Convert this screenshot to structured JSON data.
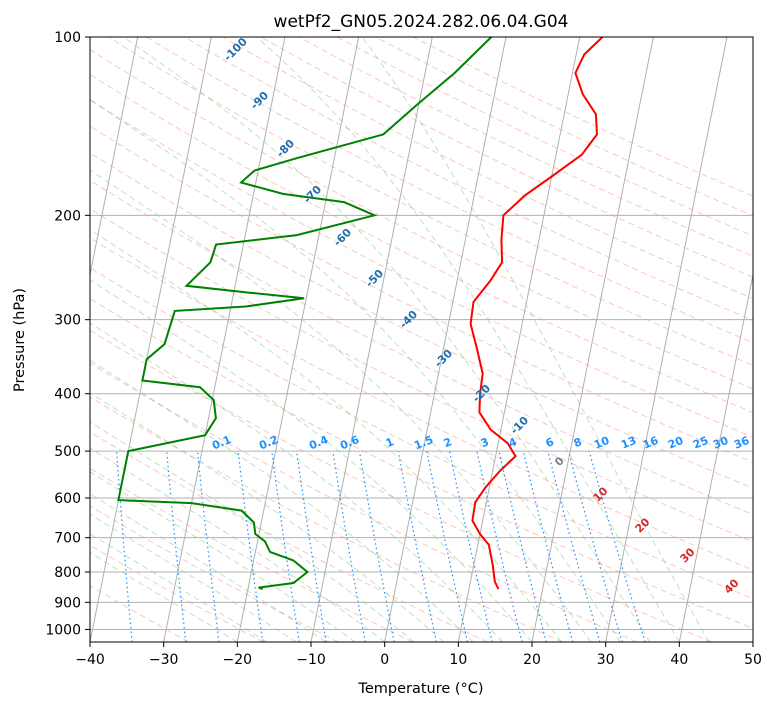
{
  "chart_data": {
    "type": "line",
    "subtype": "skew-t log-p diagram",
    "title": "wetPf2_GN05.2024.282.06.04.G04",
    "xlabel": "Temperature (°C)",
    "ylabel": "Pressure (hPa)",
    "xlim": [
      -40,
      50
    ],
    "ylim": [
      1050,
      100
    ],
    "y_scale": "log",
    "grid": true,
    "x_ticks": [
      "−40",
      "−30",
      "−20",
      "−10",
      "0",
      "10",
      "20",
      "30",
      "40",
      "50"
    ],
    "x_tick_values": [
      -40,
      -30,
      -20,
      -10,
      0,
      10,
      20,
      30,
      40,
      50
    ],
    "y_ticks": [
      "100",
      "200",
      "300",
      "400",
      "500",
      "600",
      "700",
      "800",
      "900",
      "1000"
    ],
    "y_tick_values": [
      100,
      200,
      300,
      400,
      500,
      600,
      700,
      800,
      900,
      1000
    ],
    "isotherm_labels": [
      "-100",
      "-90",
      "-80",
      "-70",
      "-60",
      "-50",
      "-40",
      "-30",
      "-20",
      "-10"
    ],
    "isotherm_label_values": [
      -100,
      -90,
      -80,
      -70,
      -60,
      -50,
      -40,
      -30,
      -20,
      -10
    ],
    "mixing_ratio_labels": [
      "0.1",
      "0.2",
      "0.4",
      "0.6",
      "1",
      "1.5",
      "2",
      "3",
      "4",
      "6",
      "8",
      "10",
      "13",
      "16",
      "20",
      "25",
      "30",
      "36"
    ],
    "mixing_ratio_values": [
      0.1,
      0.2,
      0.4,
      0.6,
      1,
      1.5,
      2,
      3,
      4,
      6,
      8,
      10,
      13,
      16,
      20,
      25,
      30,
      36
    ],
    "moist_adiabat_labels": [
      "0",
      "10",
      "20",
      "30",
      "40"
    ],
    "moist_adiabat_values": [
      0,
      10,
      20,
      30,
      40
    ],
    "colors": {
      "temperature": "#ff0000",
      "dewpoint": "#008000",
      "isotherm_label": "#1f6fb0",
      "mixing_ratio": "#1e90ff",
      "moist_adiabat_label": "#d62728",
      "zero_label": "#808080",
      "dry_adiabat": "#fa8072",
      "moist_adiabat": "#2ca02c",
      "grid": "#b0b0b0"
    },
    "series": [
      {
        "style": "temperature",
        "points": [
          {
            "p": 855,
            "t": 14.0
          },
          {
            "p": 830,
            "t": 13.3
          },
          {
            "p": 780,
            "t": 12.6
          },
          {
            "p": 720,
            "t": 11.5
          },
          {
            "p": 690,
            "t": 10.0
          },
          {
            "p": 655,
            "t": 8.6
          },
          {
            "p": 610,
            "t": 8.5
          },
          {
            "p": 575,
            "t": 9.5
          },
          {
            "p": 540,
            "t": 11.0
          },
          {
            "p": 510,
            "t": 12.7
          },
          {
            "p": 485,
            "t": 11.3
          },
          {
            "p": 460,
            "t": 8.6
          },
          {
            "p": 430,
            "t": 6.6
          },
          {
            "p": 400,
            "t": 6.2
          },
          {
            "p": 370,
            "t": 6.0
          },
          {
            "p": 335,
            "t": 4.5
          },
          {
            "p": 305,
            "t": 3.0
          },
          {
            "p": 280,
            "t": 2.8
          },
          {
            "p": 258,
            "t": 4.5
          },
          {
            "p": 240,
            "t": 5.6
          },
          {
            "p": 220,
            "t": 4.9
          },
          {
            "p": 200,
            "t": 4.5
          },
          {
            "p": 185,
            "t": 6.9
          },
          {
            "p": 172,
            "t": 10.0
          },
          {
            "p": 158,
            "t": 13.5
          },
          {
            "p": 146,
            "t": 15.0
          },
          {
            "p": 135,
            "t": 14.3
          },
          {
            "p": 125,
            "t": 12.0
          },
          {
            "p": 115,
            "t": 10.4
          },
          {
            "p": 107,
            "t": 11.1
          },
          {
            "p": 100,
            "t": 13.1
          }
        ]
      },
      {
        "style": "dewpoint",
        "points": [
          {
            "p": 855,
            "t": -18.0
          },
          {
            "p": 850,
            "t": -18.6
          },
          {
            "p": 835,
            "t": -14.0
          },
          {
            "p": 800,
            "t": -12.4
          },
          {
            "p": 765,
            "t": -14.6
          },
          {
            "p": 740,
            "t": -18.0
          },
          {
            "p": 710,
            "t": -19.0
          },
          {
            "p": 690,
            "t": -20.5
          },
          {
            "p": 660,
            "t": -21.0
          },
          {
            "p": 630,
            "t": -23.0
          },
          {
            "p": 612,
            "t": -30.0
          },
          {
            "p": 605,
            "t": -40.0
          },
          {
            "p": 500,
            "t": -40.0
          },
          {
            "p": 470,
            "t": -30.0
          },
          {
            "p": 440,
            "t": -29.0
          },
          {
            "p": 410,
            "t": -29.8
          },
          {
            "p": 390,
            "t": -32.0
          },
          {
            "p": 380,
            "t": -40.0
          },
          {
            "p": 350,
            "t": -40.0
          },
          {
            "p": 330,
            "t": -38.0
          },
          {
            "p": 290,
            "t": -37.5
          },
          {
            "p": 285,
            "t": -28.0
          },
          {
            "p": 276,
            "t": -20.3
          },
          {
            "p": 270,
            "t": -28.0
          },
          {
            "p": 263,
            "t": -36.6
          },
          {
            "p": 240,
            "t": -34.0
          },
          {
            "p": 224,
            "t": -33.7
          },
          {
            "p": 216,
            "t": -23.0
          },
          {
            "p": 200,
            "t": -13.0
          },
          {
            "p": 190,
            "t": -17.5
          },
          {
            "p": 184,
            "t": -26.0
          },
          {
            "p": 176,
            "t": -32.0
          },
          {
            "p": 168,
            "t": -30.5
          },
          {
            "p": 160,
            "t": -25.0
          },
          {
            "p": 146,
            "t": -14.0
          },
          {
            "p": 130,
            "t": -10.2
          },
          {
            "p": 115,
            "t": -6.0
          },
          {
            "p": 100,
            "t": -2.0
          }
        ]
      }
    ]
  }
}
